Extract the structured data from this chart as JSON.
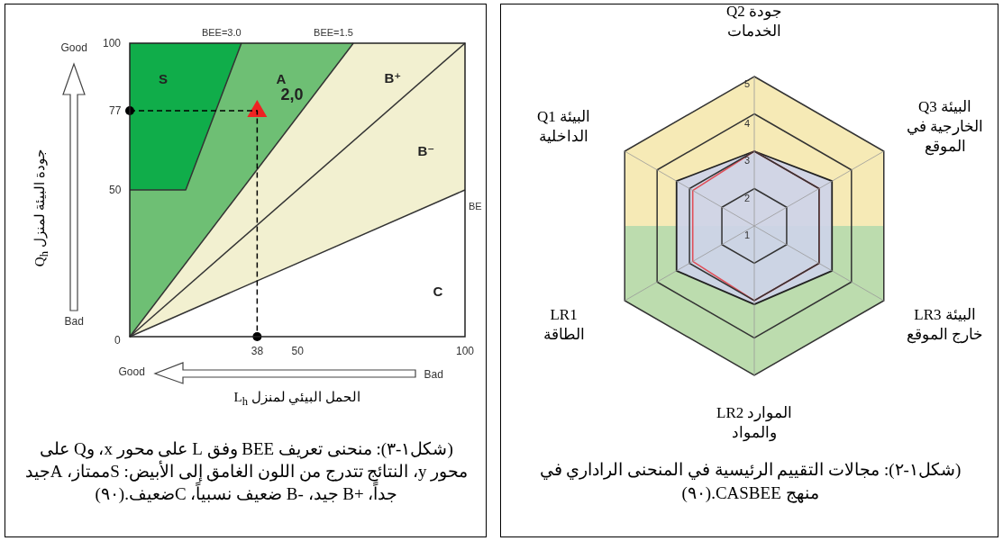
{
  "chart_data": [
    {
      "type": "radar",
      "categories": [
        "جودة Q2\nالخدمات",
        "البيئة Q3\nالخارجية في\nالموقع",
        "البيئة LR3\nخارج الموقع",
        "الموارد LR2\nوالمواد",
        "LR1\nالطاقة",
        "البيئة Q1\nالداخلية"
      ],
      "ylim": [
        1,
        5
      ],
      "yticks": [
        1,
        2,
        3,
        4,
        5
      ],
      "grid": true,
      "series": [
        {
          "color": "#cdd3ea",
          "values": [
            3,
            3.4,
            3.4,
            3.1,
            3.4,
            3.4
          ]
        },
        {
          "color": "#e0505a",
          "values": [
            3,
            3,
            3,
            3,
            2.9,
            2.9
          ]
        }
      ],
      "annotations": [
        "(شكل١-٢): مجالات التقييم الرئيسية في المنحنى الراداري في منهج CASBEE.(٩٠)"
      ]
    },
    {
      "type": "line",
      "xlim": [
        0,
        100
      ],
      "ylim": [
        0,
        100
      ],
      "xticks": [
        38,
        50,
        100
      ],
      "yticks": [
        0,
        50,
        77,
        100
      ],
      "xlabel": "الحمل البيئي لمنزل L$_{h}$",
      "ylabel": "جودة البيئة لمنزل Q$_{h}$",
      "series": [
        {
          "type": "line",
          "name": "BE",
          "color": "#333333",
          "x": [
            0,
            100
          ],
          "values": [
            0,
            50
          ]
        },
        {
          "type": "line",
          "color": "#333333",
          "x": [
            0,
            100
          ],
          "values": [
            0,
            100
          ]
        },
        {
          "type": "line",
          "name": "BEE=1.5",
          "color": "#333333",
          "x": [
            0,
            66.7
          ],
          "values": [
            0,
            100
          ]
        },
        {
          "type": "line",
          "name": "BEE=3.0",
          "color": "#333333",
          "x": [
            0,
            16.7,
            33.3
          ],
          "values": [
            50,
            50,
            100
          ]
        },
        {
          "type": "scatter",
          "color": "#ee2222",
          "marker": "triangle",
          "x": [
            38
          ],
          "values": [
            77
          ]
        },
        {
          "type": "line",
          "color": "#000000",
          "line_style": "dashed",
          "x": [
            0,
            38,
            38
          ],
          "values": [
            77,
            77,
            0
          ]
        },
        {
          "type": "scatter",
          "color": "#000000",
          "marker": "circle",
          "x": [
            0,
            38
          ],
          "values": [
            77,
            0
          ]
        }
      ],
      "annotations": [
        "S",
        "A",
        "B⁺",
        "B⁻",
        "C",
        "2,0",
        "Good",
        "Bad",
        "Good",
        "Bad",
        "(شكل١-٣): منحنى تعريف BEE وفق L على محور x، وQ على محور y، النتائج تتدرج من اللون الغامق إلى الأبيض: Sممتاز، Aجيد جداً، +B جيد، -B ضعيف نسبياً، Cضعيف.(٩٠)"
      ]
    }
  ]
}
